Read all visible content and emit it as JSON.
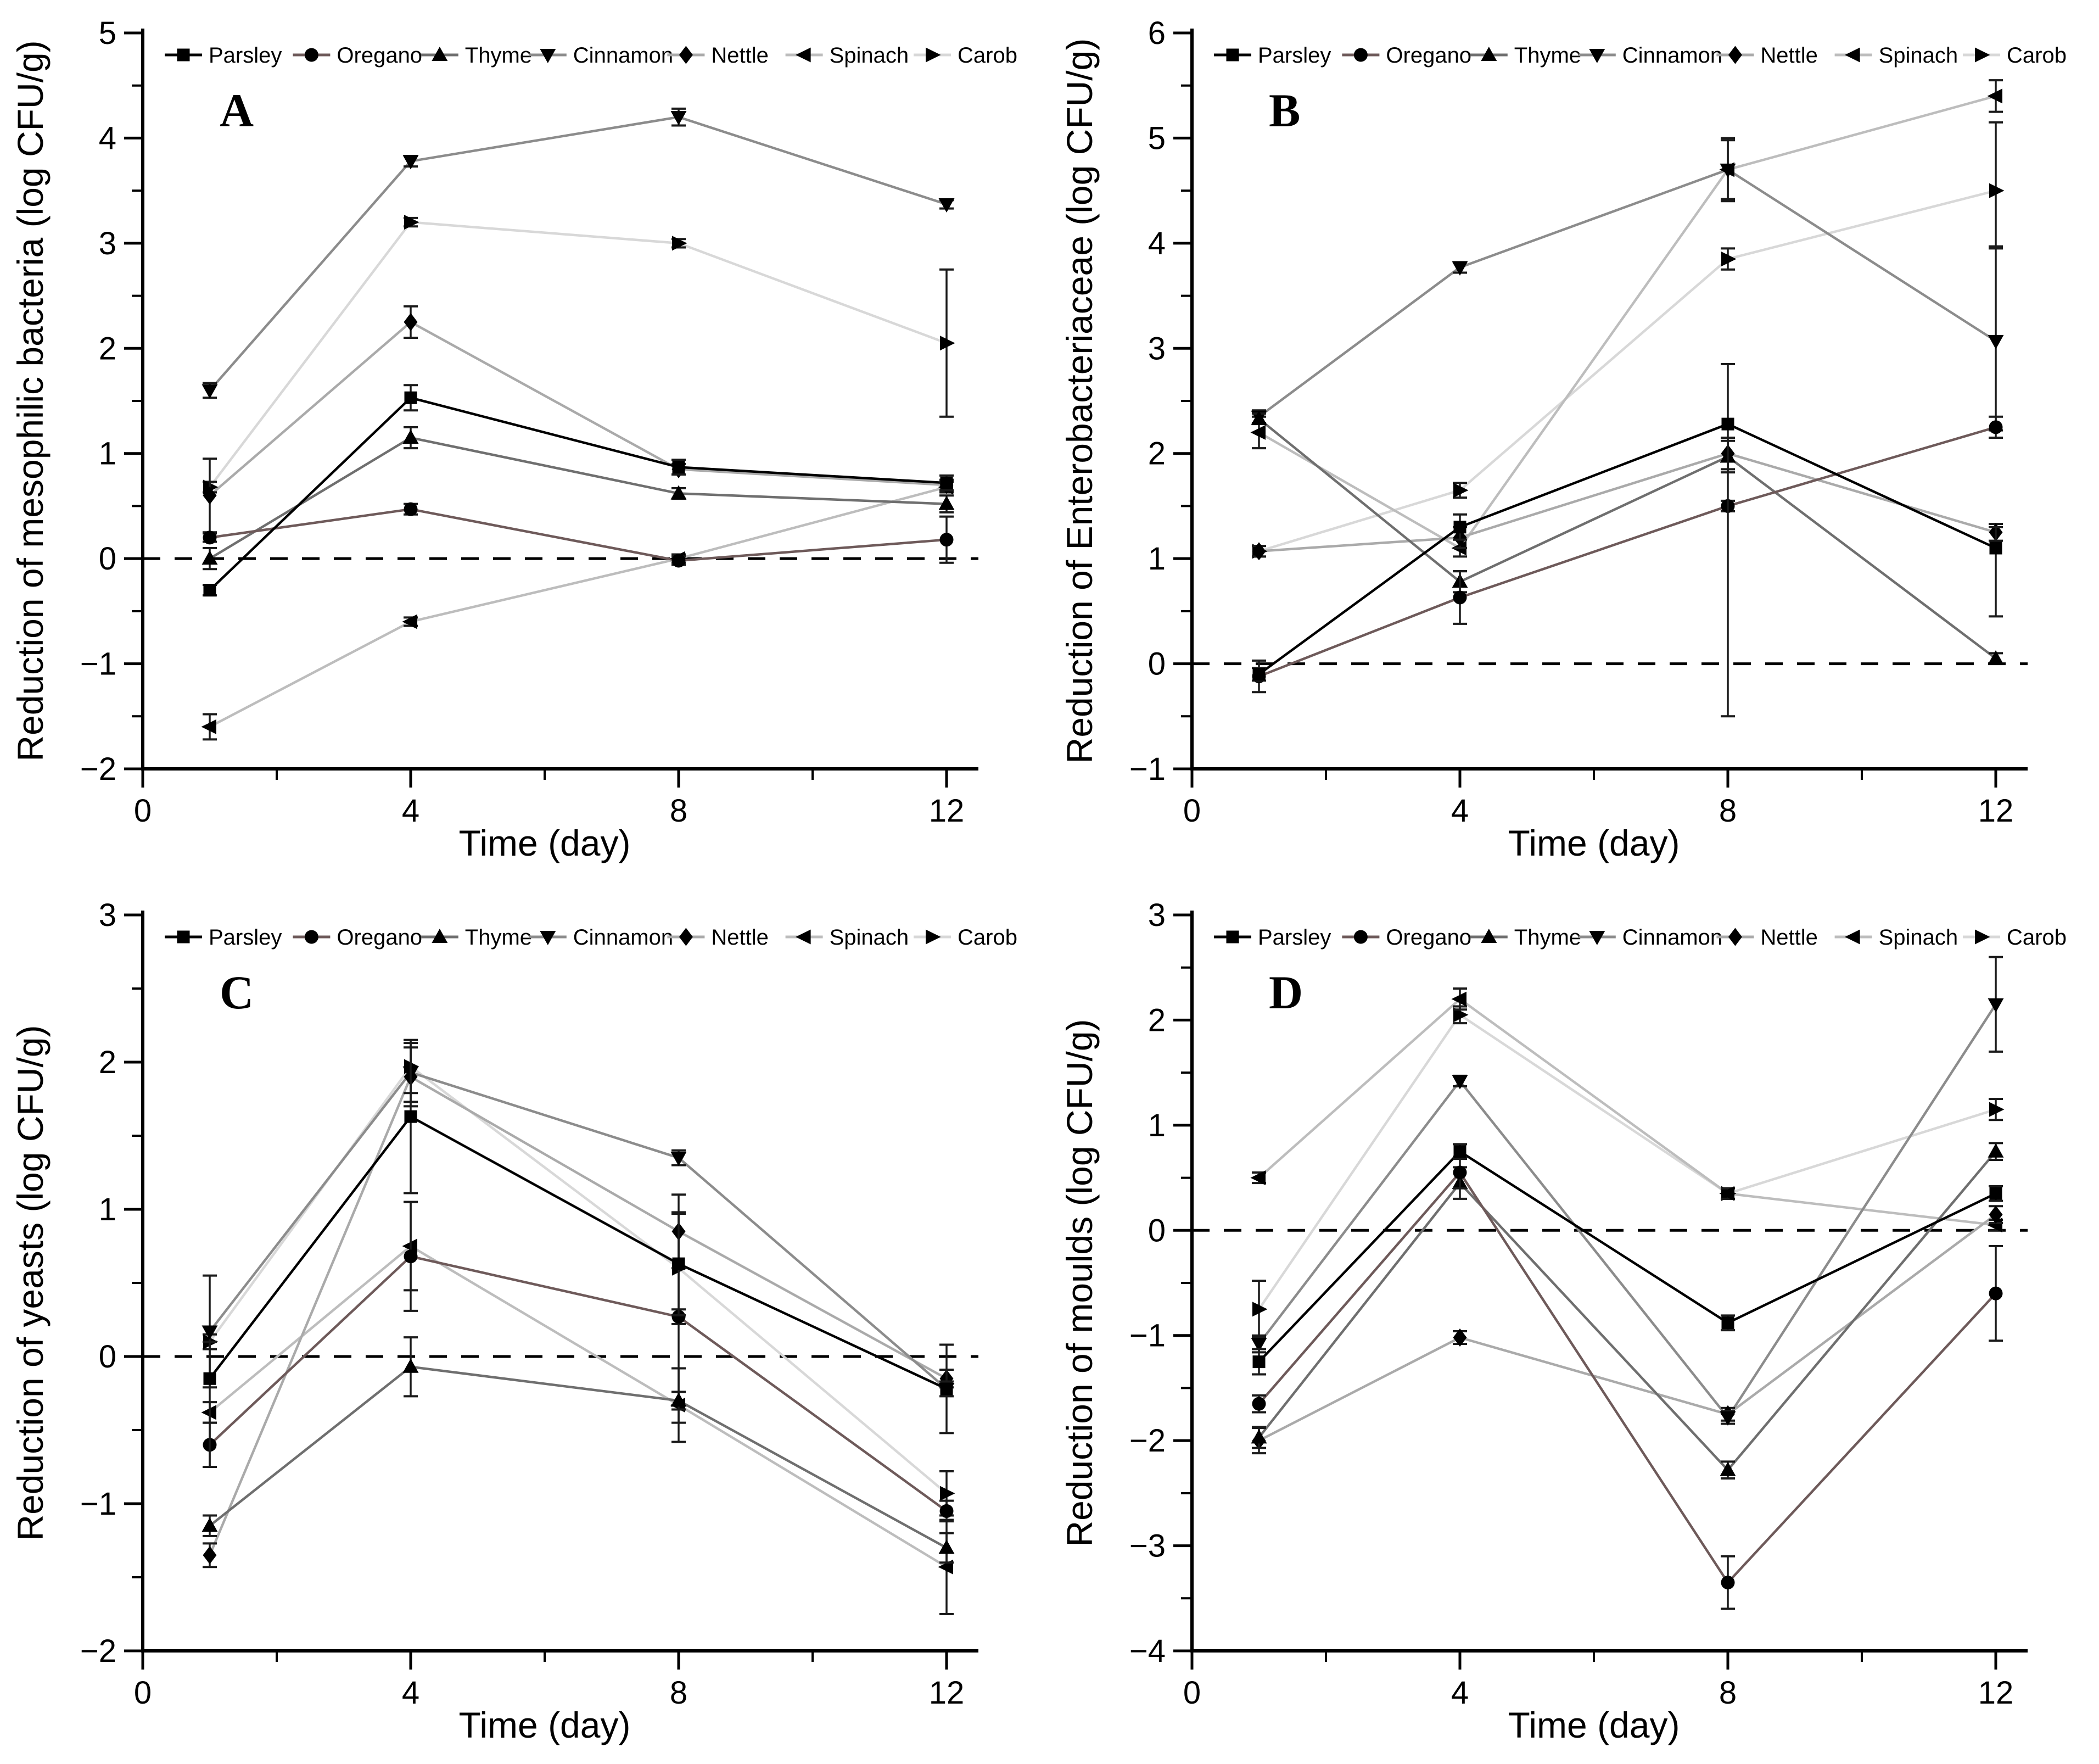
{
  "figure": {
    "type": "multi-panel-line-chart",
    "background": "#ffffff",
    "axis_color": "#000000",
    "error_bar_color": "#1a1a1a",
    "zero_line": {
      "style": "dashed",
      "color": "#000000"
    }
  },
  "chart_data": {
    "type": "line",
    "x_label": "Time (day)",
    "x_values": [
      1,
      4,
      8,
      12
    ],
    "x_ticks_major": [
      0,
      4,
      8,
      12
    ],
    "x_ticks_minor": [
      2,
      6,
      10
    ],
    "x_range": [
      0,
      12.5
    ],
    "legend_position": "top",
    "series_legend": [
      "Parsley",
      "Oregano",
      "Thyme",
      "Cinnamon",
      "Nettle",
      "Spinach",
      "Carob"
    ],
    "series_markers": {
      "Parsley": "square",
      "Oregano": "circle",
      "Thyme": "triangle-up",
      "Cinnamon": "triangle-down",
      "Nettle": "diamond",
      "Spinach": "triangle-left",
      "Carob": "triangle-right"
    },
    "series_colors": {
      "Parsley": "#000000",
      "Oregano": "#6e5a5a",
      "Thyme": "#6f6f6f",
      "Cinnamon": "#8c8c8c",
      "Nettle": "#aaaaaa",
      "Spinach": "#bdbdbd",
      "Carob": "#d8d8d8"
    },
    "marker_fill": "#000000",
    "panels": [
      {
        "letter": "A",
        "ylabel": "Reduction of mesophilic bacteria (log CFU/g)",
        "ylim": [
          -2,
          5
        ],
        "yticks": [
          5,
          4,
          3,
          2,
          1,
          0,
          -1,
          -2
        ],
        "series": [
          {
            "name": "Parsley",
            "values": [
              -0.3,
              1.53,
              0.87,
              0.72
            ],
            "err": [
              0.05,
              0.12,
              0.07,
              0.07
            ]
          },
          {
            "name": "Oregano",
            "values": [
              0.2,
              0.47,
              -0.02,
              0.18
            ],
            "err": [
              0.04,
              0.05,
              0.04,
              0.22
            ]
          },
          {
            "name": "Thyme",
            "values": [
              0.0,
              1.15,
              0.62,
              0.52
            ],
            "err": [
              0.1,
              0.1,
              0.05,
              0.08
            ]
          },
          {
            "name": "Cinnamon",
            "values": [
              1.6,
              3.78,
              4.2,
              3.37
            ],
            "err": [
              0.07,
              0.05,
              0.08,
              0.04
            ]
          },
          {
            "name": "Nettle",
            "values": [
              0.6,
              2.25,
              0.85,
              0.7
            ],
            "err": [
              0.35,
              0.15,
              0.05,
              0.05
            ]
          },
          {
            "name": "Spinach",
            "values": [
              -1.6,
              -0.6,
              0.0,
              0.68
            ],
            "err": [
              0.12,
              0.04,
              0.04,
              0.05
            ]
          },
          {
            "name": "Carob",
            "values": [
              0.68,
              3.2,
              3.0,
              2.05
            ],
            "err": [
              0.05,
              0.04,
              0.04,
              0.7
            ]
          }
        ]
      },
      {
        "letter": "B",
        "ylabel": "Reduction of Enterobacteriaceae (log CFU/g)",
        "ylim": [
          -1,
          6
        ],
        "yticks": [
          6,
          5,
          4,
          3,
          2,
          1,
          0,
          -1
        ],
        "series": [
          {
            "name": "Parsley",
            "values": [
              -0.1,
              1.3,
              2.28,
              1.1
            ],
            "err": [
              0.06,
              0.12,
              [
                2.78,
                0.57
              ],
              [
                0.65,
                0.2
              ]
            ]
          },
          {
            "name": "Oregano",
            "values": [
              -0.12,
              0.63,
              1.5,
              2.25
            ],
            "err": [
              0.15,
              0.25,
              0.05,
              0.1
            ]
          },
          {
            "name": "Thyme",
            "values": [
              2.33,
              0.78,
              1.97,
              0.05
            ],
            "err": [
              0.05,
              0.1,
              0.15,
              0.05
            ]
          },
          {
            "name": "Cinnamon",
            "values": [
              2.35,
              3.77,
              4.7,
              3.07
            ],
            "err": [
              0.06,
              0.05,
              0.3,
              [
                0.85,
                0.9
              ]
            ]
          },
          {
            "name": "Nettle",
            "values": [
              1.07,
              1.2,
              2.0,
              1.25
            ],
            "err": [
              0.05,
              0.1,
              0.15,
              0.08
            ]
          },
          {
            "name": "Spinach",
            "values": [
              2.2,
              1.1,
              4.7,
              5.4
            ],
            "err": [
              0.15,
              0.08,
              0.28,
              0.15
            ]
          },
          {
            "name": "Carob",
            "values": [
              1.07,
              1.65,
              3.85,
              4.5
            ],
            "err": [
              0.05,
              0.07,
              0.1,
              [
                0.55,
                0.65
              ]
            ]
          }
        ]
      },
      {
        "letter": "C",
        "ylabel": "Reduction of yeasts (log CFU/g)",
        "ylim": [
          -2,
          3
        ],
        "yticks": [
          3,
          2,
          1,
          0,
          -1,
          -2
        ],
        "series": [
          {
            "name": "Parsley",
            "values": [
              -0.15,
              1.63,
              0.63,
              -0.22
            ],
            "err": [
              [
                0.6,
                0.25
              ],
              0.52,
              0.35,
              0.3
            ]
          },
          {
            "name": "Oregano",
            "values": [
              -0.6,
              0.68,
              0.27,
              -1.05
            ],
            "err": [
              0.15,
              0.37,
              0.05,
              0.07
            ]
          },
          {
            "name": "Thyme",
            "values": [
              -1.15,
              -0.07,
              -0.3,
              -1.3
            ],
            "err": [
              0.07,
              0.2,
              0.06,
              0.1
            ]
          },
          {
            "name": "Cinnamon",
            "values": [
              0.17,
              1.93,
              1.35,
              -0.22
            ],
            "err": [
              0.38,
              0.2,
              0.05,
              0.05
            ]
          },
          {
            "name": "Nettle",
            "values": [
              -1.35,
              1.9,
              0.85,
              -0.15
            ],
            "err": [
              0.08,
              0.2,
              0.25,
              0.06
            ]
          },
          {
            "name": "Spinach",
            "values": [
              -0.38,
              0.75,
              -0.33,
              -1.43
            ],
            "err": [
              0.07,
              0.3,
              0.25,
              0.32
            ]
          },
          {
            "name": "Carob",
            "values": [
              0.1,
              1.97,
              0.6,
              -0.93
            ],
            "err": [
              0.05,
              0.18,
              [
                1.05,
                0.37
              ],
              0.15
            ]
          }
        ]
      },
      {
        "letter": "D",
        "ylabel": "Reduction of moulds (log CFU/g)",
        "ylim": [
          -4,
          3
        ],
        "yticks": [
          3,
          2,
          1,
          0,
          -1,
          -2,
          -3,
          -4
        ],
        "series": [
          {
            "name": "Parsley",
            "values": [
              -1.25,
              0.75,
              -0.88,
              0.35
            ],
            "err": [
              0.12,
              0.07,
              0.07,
              0.07
            ]
          },
          {
            "name": "Oregano",
            "values": [
              -1.65,
              0.55,
              -3.35,
              -0.6
            ],
            "err": [
              0.08,
              0.15,
              0.25,
              0.45
            ]
          },
          {
            "name": "Thyme",
            "values": [
              -1.97,
              0.45,
              -2.28,
              0.75
            ],
            "err": [
              0.1,
              0.15,
              0.08,
              0.08
            ]
          },
          {
            "name": "Cinnamon",
            "values": [
              -1.08,
              1.42,
              -1.78,
              2.15
            ],
            "err": [
              0.08,
              0.05,
              0.06,
              0.45
            ]
          },
          {
            "name": "Nettle",
            "values": [
              -2.0,
              -1.02,
              -1.75,
              0.15
            ],
            "err": [
              0.12,
              0.06,
              0.06,
              0.08
            ]
          },
          {
            "name": "Spinach",
            "values": [
              0.5,
              2.2,
              0.35,
              0.05
            ],
            "err": [
              0.05,
              0.1,
              0.05,
              0.05
            ]
          },
          {
            "name": "Carob",
            "values": [
              -0.75,
              2.05,
              0.35,
              1.15
            ],
            "err": [
              0.27,
              0.08,
              0.05,
              0.1
            ]
          }
        ]
      }
    ]
  }
}
